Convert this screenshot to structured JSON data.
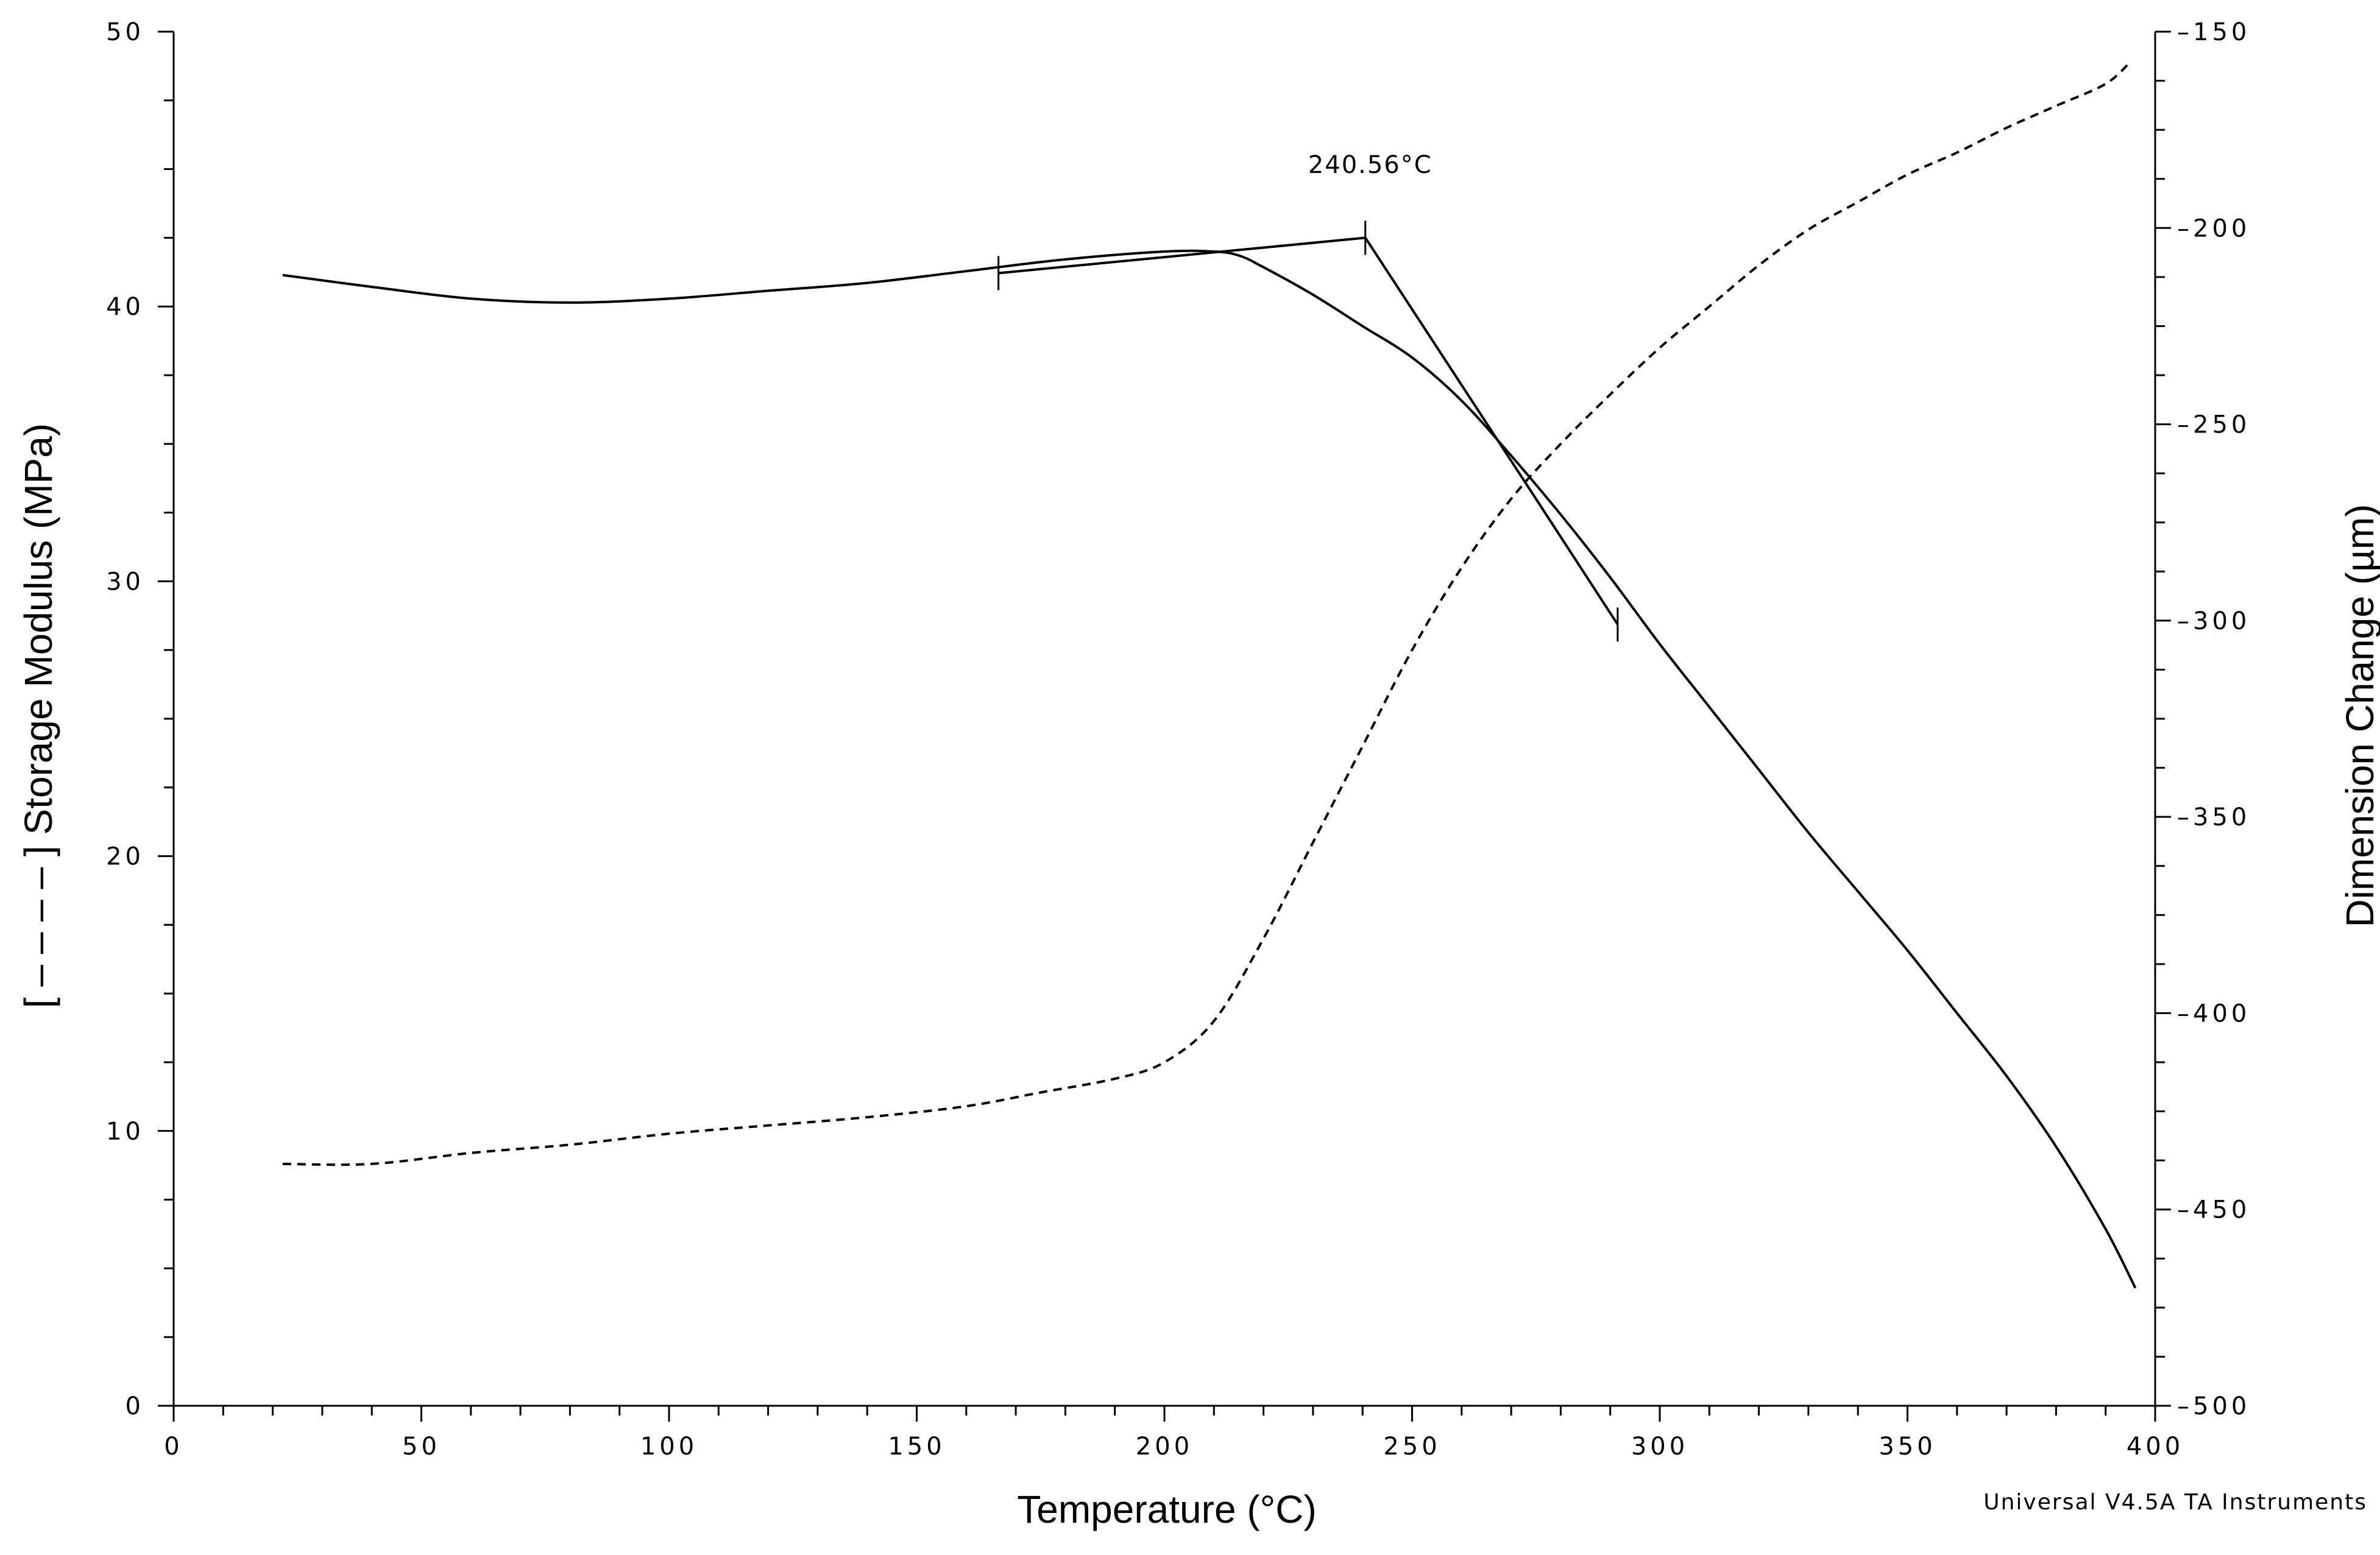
{
  "chart_data": {
    "type": "line",
    "xlabel": "Temperature (°C)",
    "ylabel_left": "[ – – – – ] Storage Modulus (MPa)",
    "ylabel_right": "Dimension Change (µm)",
    "xlim": [
      0,
      400
    ],
    "ylim_left": [
      0,
      50
    ],
    "ylim_right": [
      -500,
      -150
    ],
    "x_ticks": [
      0,
      50,
      100,
      150,
      200,
      250,
      300,
      350,
      400
    ],
    "x_tick_labels": [
      "0",
      "50",
      "100",
      "150",
      "200",
      "250",
      "300",
      "350",
      "400"
    ],
    "y_left_ticks": [
      0,
      10,
      20,
      30,
      40,
      50
    ],
    "y_left_tick_labels": [
      "0",
      "10",
      "20",
      "30",
      "40",
      "50"
    ],
    "y_right_ticks": [
      -500,
      -450,
      -400,
      -350,
      -300,
      -250,
      -200,
      -150
    ],
    "y_right_tick_labels": [
      "–500",
      "–450",
      "–400",
      "–350",
      "–300",
      "–250",
      "–200",
      "–150"
    ],
    "grid": false,
    "series": [
      {
        "style": "dashed",
        "axis": "left",
        "x": [
          22,
          40,
          60,
          80,
          100,
          120,
          140,
          160,
          175,
          190,
          200,
          210,
          220,
          230,
          240,
          250,
          260,
          270,
          280,
          290,
          300,
          310,
          320,
          330,
          340,
          350,
          360,
          370,
          380,
          390,
          395
        ],
        "y": [
          8.8,
          8.8,
          9.2,
          9.5,
          9.9,
          10.2,
          10.5,
          10.9,
          11.4,
          11.9,
          12.5,
          14.0,
          17.0,
          20.5,
          24.0,
          27.5,
          30.5,
          33.0,
          35.0,
          36.8,
          38.5,
          40.0,
          41.5,
          42.8,
          43.8,
          44.8,
          45.6,
          46.5,
          47.3,
          48.1,
          48.9
        ]
      },
      {
        "style": "solid",
        "axis": "right",
        "x": [
          22,
          40,
          60,
          80,
          100,
          120,
          140,
          160,
          180,
          200,
          210,
          215,
          220,
          230,
          240,
          250,
          260,
          270,
          280,
          290,
          300,
          310,
          320,
          330,
          340,
          350,
          360,
          370,
          380,
          390,
          396
        ],
        "y": [
          -212,
          -215,
          -218,
          -219,
          -218,
          -216,
          -214,
          -211,
          -208,
          -206,
          -206,
          -207,
          -210,
          -217,
          -225,
          -233,
          -244,
          -258,
          -273,
          -289,
          -306,
          -322,
          -338,
          -354,
          -369,
          -384,
          -400,
          -416,
          -434,
          -455,
          -470
        ]
      },
      {
        "style": "onset-construction",
        "axis": "right",
        "x": [
          166.5,
          240.56,
          275,
          291.5
        ],
        "y": [
          -211.5,
          -202.5,
          -269,
          -301
        ]
      }
    ],
    "markers": [
      {
        "x": 166.5,
        "y": -211.5
      },
      {
        "x": 240.56,
        "y": -202.5
      },
      {
        "x": 291.5,
        "y": -301
      }
    ],
    "annotations": [
      {
        "text": "240.56°C",
        "x": 240.56
      }
    ],
    "footer": "Universal V4.5A TA Instruments"
  }
}
